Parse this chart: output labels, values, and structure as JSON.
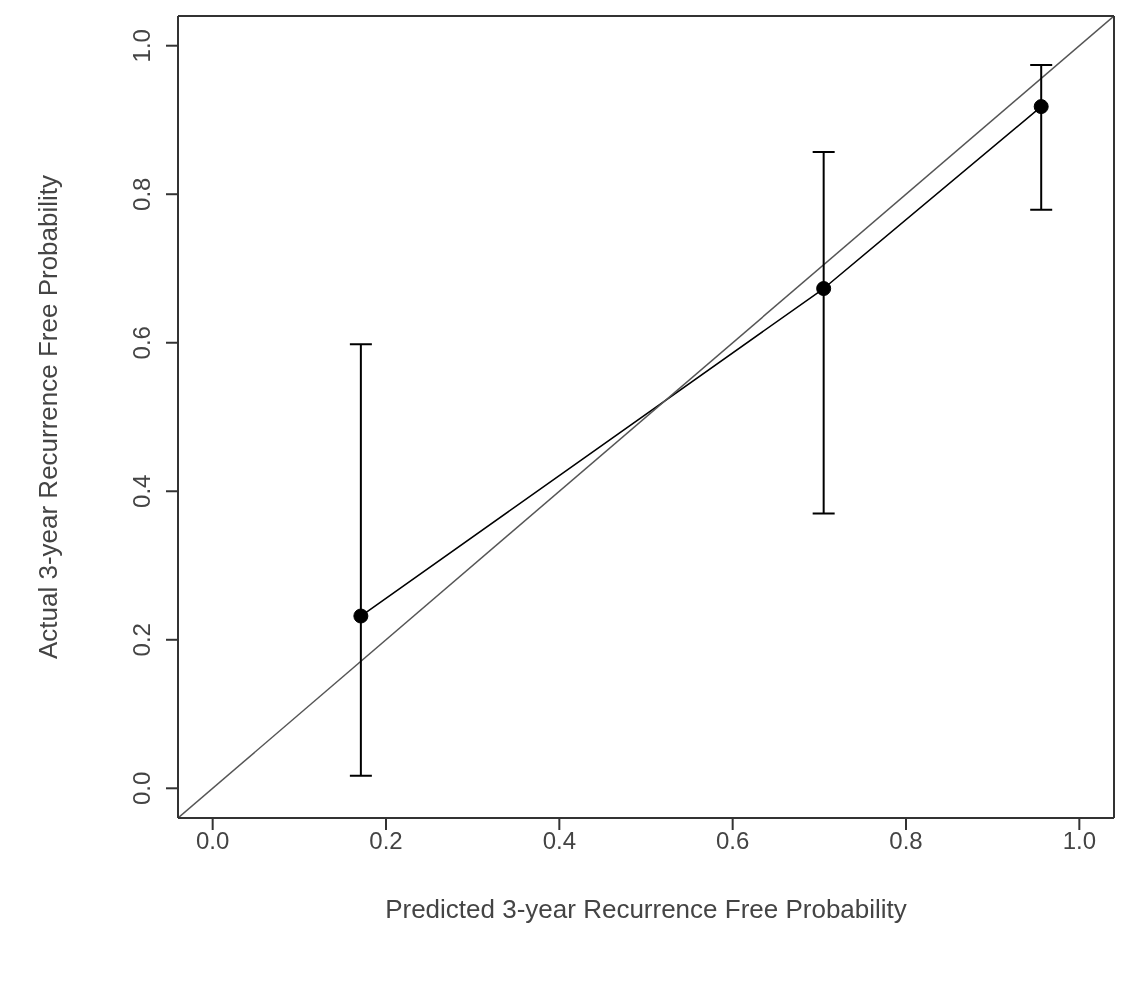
{
  "chart_data": {
    "type": "line",
    "xlabel": "Predicted 3-year Recurrence Free Probability",
    "ylabel": "Actual 3-year Recurrence Free Probability",
    "xlim": [
      -0.04,
      1.04
    ],
    "ylim": [
      -0.04,
      1.04
    ],
    "xticks": [
      {
        "value": 0,
        "label": "0.0"
      },
      0.2,
      0.4,
      0.6,
      0.8,
      {
        "value": 1,
        "label": "1.0"
      }
    ],
    "yticks": [
      {
        "value": 0,
        "label": "0.0"
      },
      0.2,
      0.4,
      0.6,
      0.8,
      {
        "value": 1,
        "label": "1.0"
      }
    ],
    "line_style": "solid",
    "series": [
      {
        "color": "#000000",
        "marker": "circle",
        "x": [
          0.171,
          0.705,
          0.956
        ],
        "values": [
          0.232,
          0.673,
          0.918
        ],
        "errors": [
          [
            0.017,
            0.598
          ],
          [
            0.37,
            0.857
          ],
          [
            0.779,
            0.974
          ]
        ]
      },
      {
        "color": "#555555",
        "marker": "none",
        "x": [
          -0.04,
          1.04
        ],
        "values": [
          -0.04,
          1.04
        ]
      }
    ]
  }
}
